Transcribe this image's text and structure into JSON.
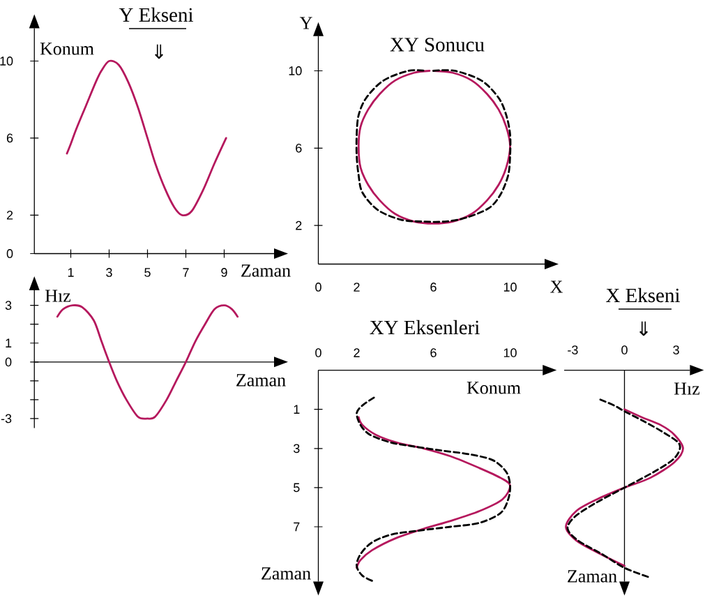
{
  "chart_data": [
    {
      "type": "line",
      "title": "Y Ekseni",
      "subtitle": "⇓",
      "xlabel": "Zaman",
      "ylabel": "Konum",
      "xlim": [
        -0.9,
        11.6
      ],
      "ylim": [
        0,
        11.7
      ],
      "xticks": [
        1,
        3,
        5,
        7,
        9
      ],
      "yticks": [
        0,
        2,
        6,
        10
      ],
      "series": [
        {
          "color": "#b5185d",
          "line_style": "solid",
          "x": [
            0.8,
            1.0,
            1.3,
            1.8,
            2.3,
            2.6,
            3.0,
            3.5,
            4.0,
            4.5,
            5.0,
            5.4,
            5.9,
            6.4,
            6.8,
            7.3,
            7.9,
            8.5,
            9.1
          ],
          "values": [
            5.2,
            5.7,
            6.5,
            7.7,
            8.9,
            9.5,
            10.0,
            9.8,
            8.9,
            7.6,
            6.0,
            4.7,
            3.4,
            2.4,
            2.0,
            2.2,
            3.3,
            4.7,
            6.0
          ]
        }
      ]
    },
    {
      "type": "line",
      "xlabel": "Zaman",
      "ylabel": "Hız",
      "xlim": [
        -0.9,
        11.6
      ],
      "ylim": [
        -3.5,
        3.8
      ],
      "tick_labels": "y",
      "yticks": [
        -3,
        {
          "value": -2,
          "label": null
        },
        {
          "value": -1,
          "label": null
        },
        0,
        1,
        {
          "value": 2,
          "label": null
        },
        3
      ],
      "series": [
        {
          "color": "#b5185d",
          "line_style": "solid",
          "x": [
            0.3,
            0.6,
            1.1,
            1.6,
            2.2,
            2.6,
            3.0,
            3.4,
            3.9,
            4.5,
            5.0,
            5.4,
            6.0,
            6.5,
            7.0,
            7.5,
            8.0,
            8.5,
            9.0,
            9.4,
            9.7
          ],
          "values": [
            2.4,
            2.8,
            3.0,
            2.9,
            2.2,
            1.1,
            0.0,
            -1.0,
            -2.0,
            -2.9,
            -3.0,
            -2.9,
            -2.0,
            -1.0,
            0.0,
            1.1,
            2.0,
            2.8,
            3.0,
            2.8,
            2.4
          ]
        }
      ]
    },
    {
      "type": "line",
      "title": "XY Sonucu",
      "xlabel": "X",
      "ylabel": "Y",
      "xlim": [
        0,
        11.8
      ],
      "ylim": [
        0,
        11.8
      ],
      "xticks": [
        0,
        2,
        6,
        10
      ],
      "yticks": [
        2,
        6,
        10
      ],
      "series": [
        {
          "color": "#b5185d",
          "line_style": "solid",
          "x": [
            6.0,
            7.0,
            8.0,
            8.8,
            9.4,
            9.8,
            10.0,
            9.8,
            9.4,
            8.8,
            8.0,
            7.0,
            6.0,
            5.0,
            4.0,
            3.2,
            2.6,
            2.2,
            2.1,
            2.2,
            2.6,
            3.2,
            4.0,
            5.0,
            5.8
          ],
          "values": [
            10.0,
            9.9,
            9.5,
            8.8,
            8.0,
            7.1,
            6.1,
            5.0,
            4.1,
            3.3,
            2.6,
            2.2,
            2.1,
            2.2,
            2.6,
            3.3,
            4.1,
            5.0,
            6.1,
            7.1,
            8.0,
            8.8,
            9.5,
            9.9,
            10.0
          ]
        },
        {
          "color": "#000000",
          "line_style": "dashed",
          "x": [
            6.0,
            7.1,
            8.5,
            9.4,
            9.8,
            10.0,
            10.0,
            9.9,
            9.5,
            8.9,
            7.7,
            6.6,
            5.4,
            4.3,
            3.1,
            2.3,
            2.1,
            2.0,
            2.0,
            2.1,
            2.5,
            3.4,
            4.7,
            5.6
          ],
          "values": [
            10.0,
            10.0,
            9.5,
            8.6,
            7.7,
            6.7,
            5.6,
            4.6,
            3.6,
            2.9,
            2.4,
            2.2,
            2.2,
            2.3,
            2.8,
            3.7,
            4.6,
            5.6,
            6.7,
            7.7,
            8.6,
            9.5,
            10.0,
            10.0
          ]
        }
      ]
    },
    {
      "type": "line",
      "title": "XY Eksenleri",
      "xlabel": "Konum",
      "ylabel": "Zaman",
      "xlim": [
        0,
        11.7
      ],
      "ylim": [
        9.8,
        -1
      ],
      "xticks": [
        0,
        2,
        6,
        10
      ],
      "yticks": [
        1,
        3,
        5,
        7
      ],
      "series": [
        {
          "color": "#b5185d",
          "line_style": "solid",
          "x": [
            2.1,
            2.3,
            3.0,
            4.1,
            5.5,
            6.9,
            8.4,
            9.5,
            10.0,
            9.6,
            8.4,
            6.9,
            5.5,
            4.0,
            2.8,
            2.2,
            2.0
          ],
          "values": [
            1.4,
            1.8,
            2.3,
            2.7,
            3.0,
            3.4,
            4.0,
            4.5,
            4.9,
            5.6,
            6.2,
            6.7,
            7.1,
            7.6,
            8.2,
            8.7,
            9.1
          ]
        },
        {
          "color": "#000000",
          "line_style": "dashed",
          "x": [
            2.9,
            2.3,
            2.0,
            2.2,
            2.7,
            3.8,
            5.0,
            6.4,
            7.9,
            9.1,
            9.8,
            10.0,
            9.9,
            9.5,
            8.4,
            6.9,
            5.2,
            3.8,
            2.8,
            2.2,
            2.0,
            2.3,
            2.9
          ],
          "values": [
            0.4,
            0.8,
            1.2,
            1.8,
            2.3,
            2.7,
            2.9,
            3.1,
            3.3,
            3.6,
            4.2,
            4.9,
            5.6,
            6.3,
            6.8,
            7.0,
            7.2,
            7.4,
            7.8,
            8.4,
            9.0,
            9.5,
            9.8
          ]
        }
      ]
    },
    {
      "type": "line",
      "title": "X Ekseni",
      "subtitle": "⇓",
      "xlabel": "Hız",
      "ylabel": "Zaman",
      "xlim": [
        -3.5,
        3.8
      ],
      "ylim": [
        9.8,
        -1
      ],
      "xticks": [
        -3,
        0,
        3
      ],
      "tick_labels": "x",
      "series": [
        {
          "color": "#b5185d",
          "line_style": "solid",
          "x": [
            0.0,
            1.0,
            2.1,
            2.9,
            3.4,
            2.9,
            1.5,
            0.0,
            -1.6,
            -2.8,
            -3.4,
            -2.8,
            -1.6,
            0.0
          ],
          "values": [
            1.0,
            1.4,
            1.8,
            2.3,
            3.0,
            3.7,
            4.5,
            5.0,
            5.6,
            6.2,
            7.0,
            7.7,
            8.3,
            9.0
          ]
        },
        {
          "color": "#000000",
          "line_style": "dashed",
          "x": [
            -1.4,
            -0.6,
            0.0,
            1.1,
            2.3,
            3.2,
            2.9,
            1.7,
            0.0,
            -1.7,
            -2.9,
            -3.3,
            -2.7,
            -1.3,
            0.0,
            1.5
          ],
          "values": [
            0.5,
            0.8,
            1.1,
            1.6,
            2.2,
            2.8,
            3.5,
            4.2,
            5.0,
            5.8,
            6.5,
            7.1,
            7.7,
            8.4,
            9.1,
            9.6
          ]
        }
      ]
    }
  ]
}
